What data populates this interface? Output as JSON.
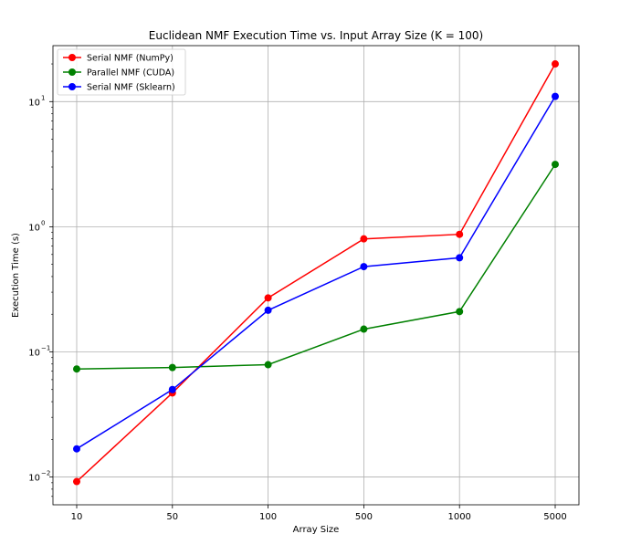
{
  "chart_data": {
    "type": "line",
    "title": "Euclidean NMF Execution Time vs. Input Array Size (K = 100)",
    "xlabel": "Array Size",
    "ylabel": "Execution Time (s)",
    "yscale": "log",
    "ylim": [
      0.006,
      28
    ],
    "grid": true,
    "legend_position": "top-left",
    "categories": [
      "10",
      "50",
      "100",
      "500",
      "1000",
      "5000"
    ],
    "y_ticks": [
      {
        "value": 0.01,
        "base": "10",
        "exp": "−2"
      },
      {
        "value": 0.1,
        "base": "10",
        "exp": "−1"
      },
      {
        "value": 1,
        "base": "10",
        "exp": "0"
      },
      {
        "value": 10,
        "base": "10",
        "exp": "1"
      }
    ],
    "series": [
      {
        "name": "Serial NMF (NumPy)",
        "color": "#ff0000",
        "values": [
          0.0092,
          0.047,
          0.27,
          0.8,
          0.87,
          20
        ]
      },
      {
        "name": "Parallel NMF (CUDA)",
        "color": "#008000",
        "values": [
          0.073,
          0.075,
          0.079,
          0.152,
          0.21,
          3.15
        ]
      },
      {
        "name": "Serial NMF (Sklearn)",
        "color": "#0000ff",
        "values": [
          0.0168,
          0.05,
          0.215,
          0.48,
          0.565,
          11
        ]
      }
    ]
  }
}
